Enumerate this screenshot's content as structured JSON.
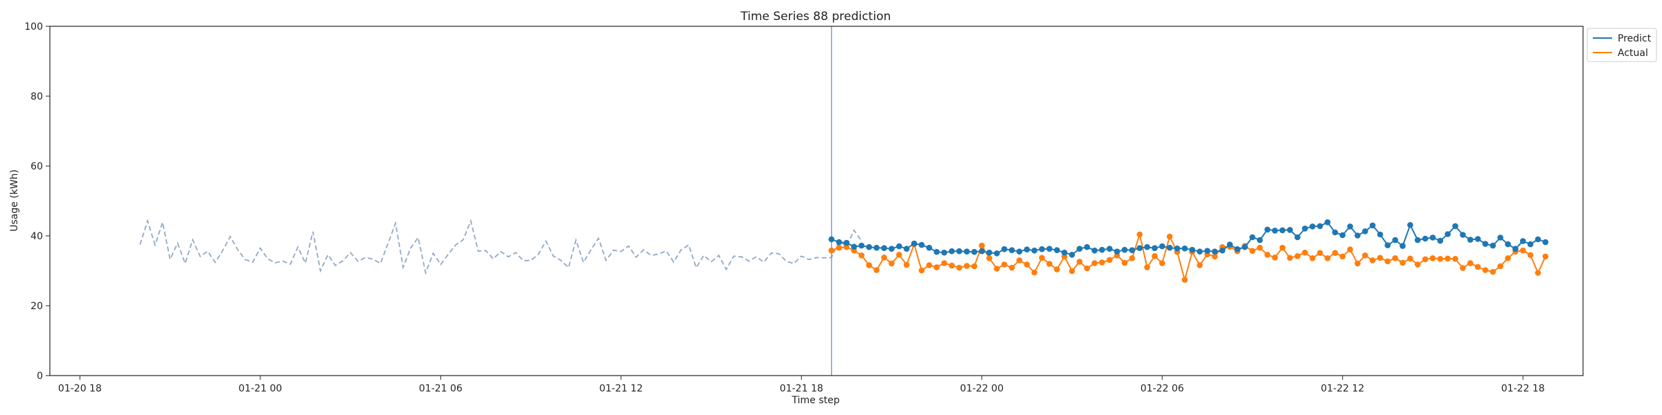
{
  "chart_data": {
    "type": "line",
    "title": "Time Series 88 prediction",
    "xlabel": "Time step",
    "ylabel": "Usage (kWh)",
    "ylim": [
      0,
      100
    ],
    "yticks": [
      0,
      20,
      40,
      60,
      80,
      100
    ],
    "xlim": [
      "2024-01-20 17:00",
      "2024-01-22 20:00"
    ],
    "xticks": [
      {
        "t": "2024-01-20 18:00",
        "label": "01-20 18"
      },
      {
        "t": "2024-01-21 00:00",
        "label": "01-21 00"
      },
      {
        "t": "2024-01-21 06:00",
        "label": "01-21 06"
      },
      {
        "t": "2024-01-21 12:00",
        "label": "01-21 12"
      },
      {
        "t": "2024-01-21 18:00",
        "label": "01-21 18"
      },
      {
        "t": "2024-01-22 00:00",
        "label": "01-22 00"
      },
      {
        "t": "2024-01-22 06:00",
        "label": "01-22 06"
      },
      {
        "t": "2024-01-22 12:00",
        "label": "01-22 12"
      },
      {
        "t": "2024-01-22 18:00",
        "label": "01-22 18"
      }
    ],
    "forecast_start": "2024-01-21 19:00",
    "grid": false,
    "legend_position": "top-right",
    "colors": {
      "predict": "#1f77b4",
      "actual": "#ff7f0e",
      "history": "#8fa8c8",
      "divider": "#7b9bd1"
    },
    "history": {
      "start": "2024-01-20 20:00",
      "step_minutes": 15,
      "values": [
        37.5,
        44.3,
        37.4,
        43.9,
        33.3,
        37.9,
        32.1,
        38.9,
        34.1,
        35.6,
        32.4,
        35.8,
        39.8,
        36.0,
        33.2,
        32.5,
        36.5,
        33.4,
        32.3,
        32.8,
        31.9,
        36.8,
        32.2,
        41.2,
        30.0,
        34.6,
        31.5,
        32.9,
        35.2,
        32.7,
        33.8,
        33.3,
        32.1,
        37.9,
        43.6,
        31.0,
        36.5,
        39.5,
        29.4,
        35.0,
        31.8,
        34.7,
        37.4,
        38.9,
        44.3,
        35.6,
        35.8,
        33.4,
        35.5,
        34.0,
        35.2,
        32.9,
        33.0,
        34.7,
        38.5,
        34.2,
        33.0,
        30.9,
        38.8,
        32.4,
        36.0,
        39.3,
        33.0,
        35.9,
        35.5,
        37.1,
        33.9,
        36.0,
        34.4,
        34.8,
        35.7,
        32.5,
        36.0,
        37.4,
        30.9,
        34.4,
        32.6,
        34.4,
        30.4,
        34.2,
        34.0,
        32.8,
        34.0,
        32.5,
        35.1,
        34.9,
        32.7,
        32.1,
        34.2,
        33.2,
        33.8,
        33.7,
        33.8,
        38.5,
        37.0,
        41.6,
        38.5
      ]
    },
    "series": [
      {
        "name": "Predict",
        "start": "2024-01-21 19:00",
        "step_minutes": 15,
        "values": [
          39.0,
          38.2,
          38.0,
          36.9,
          37.2,
          36.8,
          36.6,
          36.5,
          36.3,
          37.0,
          36.3,
          37.8,
          37.4,
          36.6,
          35.4,
          35.2,
          35.6,
          35.6,
          35.5,
          35.4,
          35.6,
          35.2,
          35.0,
          36.2,
          35.9,
          35.5,
          36.1,
          35.8,
          36.2,
          36.3,
          35.9,
          35.2,
          34.6,
          36.3,
          36.8,
          35.8,
          36.0,
          36.3,
          35.5,
          36.0,
          35.9,
          36.5,
          36.8,
          36.5,
          37.0,
          36.6,
          36.4,
          36.4,
          36.0,
          35.5,
          35.7,
          35.5,
          35.8,
          37.5,
          36.2,
          36.8,
          39.6,
          38.8,
          41.8,
          41.5,
          41.6,
          41.7,
          39.6,
          42.1,
          42.7,
          42.8,
          43.9,
          41.0,
          40.2,
          42.7,
          40.1,
          41.3,
          43.0,
          40.4,
          37.3,
          38.8,
          37.1,
          43.1,
          38.8,
          39.2,
          39.5,
          38.6,
          40.5,
          42.8,
          40.3,
          38.9,
          39.1,
          37.7,
          37.2,
          39.5,
          37.6,
          36.3,
          38.5,
          37.6,
          39.0,
          38.2
        ]
      },
      {
        "name": "Actual",
        "start": "2024-01-21 19:00",
        "step_minutes": 15,
        "values": [
          35.8,
          36.6,
          36.8,
          35.8,
          34.4,
          31.6,
          30.2,
          33.8,
          32.1,
          34.6,
          31.7,
          37.6,
          30.1,
          31.6,
          31.0,
          32.2,
          31.5,
          30.9,
          31.4,
          31.3,
          37.2,
          33.6,
          30.6,
          31.8,
          30.9,
          33.0,
          31.8,
          29.5,
          33.7,
          32.0,
          30.4,
          34.1,
          29.9,
          32.6,
          30.7,
          32.2,
          32.4,
          33.1,
          34.4,
          32.3,
          33.6,
          40.4,
          31.0,
          34.2,
          32.2,
          39.8,
          35.4,
          27.4,
          35.4,
          31.6,
          34.7,
          34.1,
          36.8,
          36.9,
          35.6,
          37.1,
          35.7,
          36.6,
          34.6,
          33.8,
          36.6,
          33.7,
          34.2,
          35.2,
          33.6,
          35.1,
          33.6,
          35.1,
          34.1,
          36.1,
          32.1,
          34.4,
          33.0,
          33.7,
          32.7,
          33.6,
          32.3,
          33.5,
          31.8,
          33.3,
          33.6,
          33.4,
          33.5,
          33.4,
          30.8,
          32.2,
          31.1,
          30.2,
          29.7,
          31.3,
          33.6,
          35.5,
          35.8,
          34.5,
          29.4,
          34.1
        ]
      }
    ]
  }
}
